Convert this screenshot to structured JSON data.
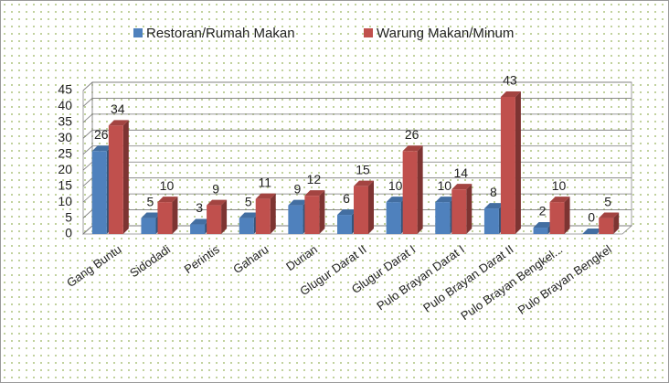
{
  "chart_data": {
    "type": "bar3d",
    "categories": [
      "Gang Buntu",
      "Sidodadi",
      "Perintis",
      "Gaharu",
      "Durian",
      "Glugur Darat II",
      "Glugur Darat I",
      "Pulo Brayan Darat I",
      "Pulo Brayan Darat II",
      "Pulo Brayan Bengkel...",
      "Pulo Brayan Bengkel"
    ],
    "series": [
      {
        "name": "Restoran/Rumah Makan",
        "color": "#4f81bd",
        "values": [
          26,
          5,
          3,
          5,
          9,
          6,
          10,
          10,
          8,
          2,
          0
        ]
      },
      {
        "name": "Warung Makan/Minum",
        "color": "#c0504d",
        "values": [
          34,
          10,
          9,
          11,
          12,
          15,
          26,
          14,
          43,
          10,
          5
        ]
      }
    ],
    "ylim": [
      0,
      45
    ],
    "yticks": [
      0,
      5,
      10,
      15,
      20,
      25,
      30,
      35,
      40,
      45
    ],
    "grid": true,
    "legend": "top"
  }
}
